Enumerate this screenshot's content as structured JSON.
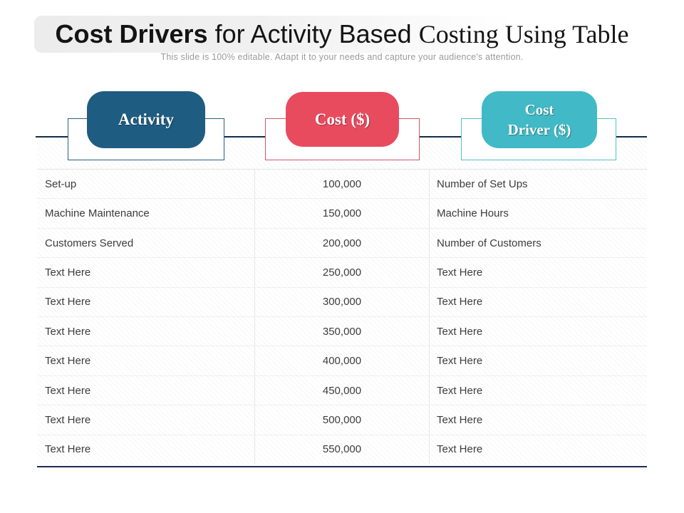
{
  "slide": {
    "title": {
      "bold": "Cost Drivers",
      "mid": " for Activity Based ",
      "serif": "Costing Using Table"
    },
    "subtitle": "This slide is 100% editable. Adapt it to your needs and capture your audience's attention."
  },
  "headers": [
    {
      "label": "Activity",
      "color": "#1F5C82",
      "outline_border": "#2d5f7d"
    },
    {
      "label": "Cost ($)",
      "color": "#E94B5E",
      "outline_border": "#cc5a63"
    },
    {
      "label": "Cost Driver ($)",
      "line1": "Cost",
      "line2": "Driver ($)",
      "color": "#41B9C6",
      "outline_border": "#55bfc9"
    }
  ],
  "colors": {
    "connector_line": "#142c47",
    "table_bottom_line": "#1f2c55",
    "row_text": "#3c3c3c",
    "subtitle_text": "#9a9a9a"
  },
  "chart_data": {
    "type": "table",
    "columns": [
      "Activity",
      "Cost ($)",
      "Cost Driver ($)"
    ],
    "rows": [
      [
        "Set-up",
        "100,000",
        "Number of Set Ups"
      ],
      [
        "Machine Maintenance",
        "150,000",
        "Machine Hours"
      ],
      [
        "Customers Served",
        "200,000",
        "Number of Customers"
      ],
      [
        "Text Here",
        "250,000",
        "Text Here"
      ],
      [
        "Text Here",
        "300,000",
        "Text Here"
      ],
      [
        "Text Here",
        "350,000",
        "Text Here"
      ],
      [
        "Text Here",
        "400,000",
        "Text Here"
      ],
      [
        "Text Here",
        "450,000",
        "Text Here"
      ],
      [
        "Text Here",
        "500,000",
        "Text Here"
      ],
      [
        "Text Here",
        "550,000",
        "Text Here"
      ]
    ],
    "title": "Cost Drivers for Activity Based Costing Using Table"
  },
  "table": {
    "rows": [
      {
        "activity": "Set-up",
        "cost": "100,000",
        "driver": "Number of Set Ups"
      },
      {
        "activity": "Machine Maintenance",
        "cost": "150,000",
        "driver": "Machine Hours"
      },
      {
        "activity": "Customers Served",
        "cost": "200,000",
        "driver": "Number of Customers"
      },
      {
        "activity": "Text Here",
        "cost": "250,000",
        "driver": "Text Here"
      },
      {
        "activity": "Text Here",
        "cost": "300,000",
        "driver": "Text Here"
      },
      {
        "activity": "Text Here",
        "cost": "350,000",
        "driver": "Text Here"
      },
      {
        "activity": "Text Here",
        "cost": "400,000",
        "driver": "Text Here"
      },
      {
        "activity": "Text Here",
        "cost": "450,000",
        "driver": "Text Here"
      },
      {
        "activity": "Text Here",
        "cost": "500,000",
        "driver": "Text Here"
      },
      {
        "activity": "Text Here",
        "cost": "550,000",
        "driver": "Text Here"
      }
    ]
  }
}
